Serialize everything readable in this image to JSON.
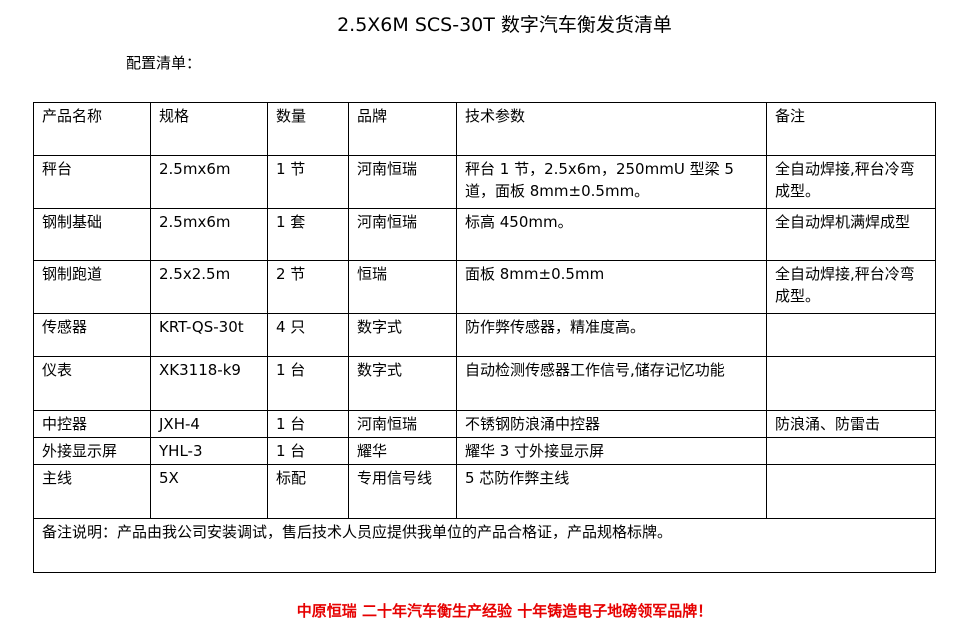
{
  "title": "2.5X6M SCS-30T 数字汽车衡发货清单",
  "subtitle": "配置清单：",
  "headers": [
    "产品名称",
    "规格",
    "数量",
    "品牌",
    "技术参数",
    "备注"
  ],
  "rows": [
    [
      "秤台",
      "2.5mx6m",
      "1 节",
      "河南恒瑞",
      "秤台 1 节，2.5x6m，250mmU 型梁 5 道，面板 8mm±0.5mm。",
      "全自动焊接,秤台冷弯成型。"
    ],
    [
      "钢制基础",
      "2.5mx6m",
      "1 套",
      "河南恒瑞",
      "标高 450mm。",
      "全自动焊机满焊成型"
    ],
    [
      "钢制跑道",
      "2.5x2.5m",
      "2 节",
      "恒瑞",
      "面板 8mm±0.5mm",
      "全自动焊接,秤台冷弯成型。"
    ],
    [
      "传感器",
      "KRT-QS-30t",
      "4 只",
      "数字式",
      "防作弊传感器，精准度高。",
      ""
    ],
    [
      "仪表",
      "XK3118-k9",
      "1 台",
      "数字式",
      "自动检测传感器工作信号,储存记忆功能",
      ""
    ],
    [
      "中控器",
      "JXH-4",
      "1 台",
      "河南恒瑞",
      "不锈钢防浪涌中控器",
      "防浪涌、防雷击"
    ],
    [
      "外接显示屏",
      "YHL-3",
      "1 台",
      "耀华",
      "耀华 3 寸外接显示屏",
      ""
    ],
    [
      "主线",
      "5X",
      "标配",
      "专用信号线",
      "5 芯防作弊主线",
      ""
    ]
  ],
  "note": "备注说明：产品由我公司安装调试，售后技术人员应提供我单位的产品合格证，产品规格标牌。",
  "footer": "中原恒瑞 二十年汽车衡生产经验 十年铸造电子地磅领军品牌！",
  "colors": {
    "footer": "#e60000"
  }
}
